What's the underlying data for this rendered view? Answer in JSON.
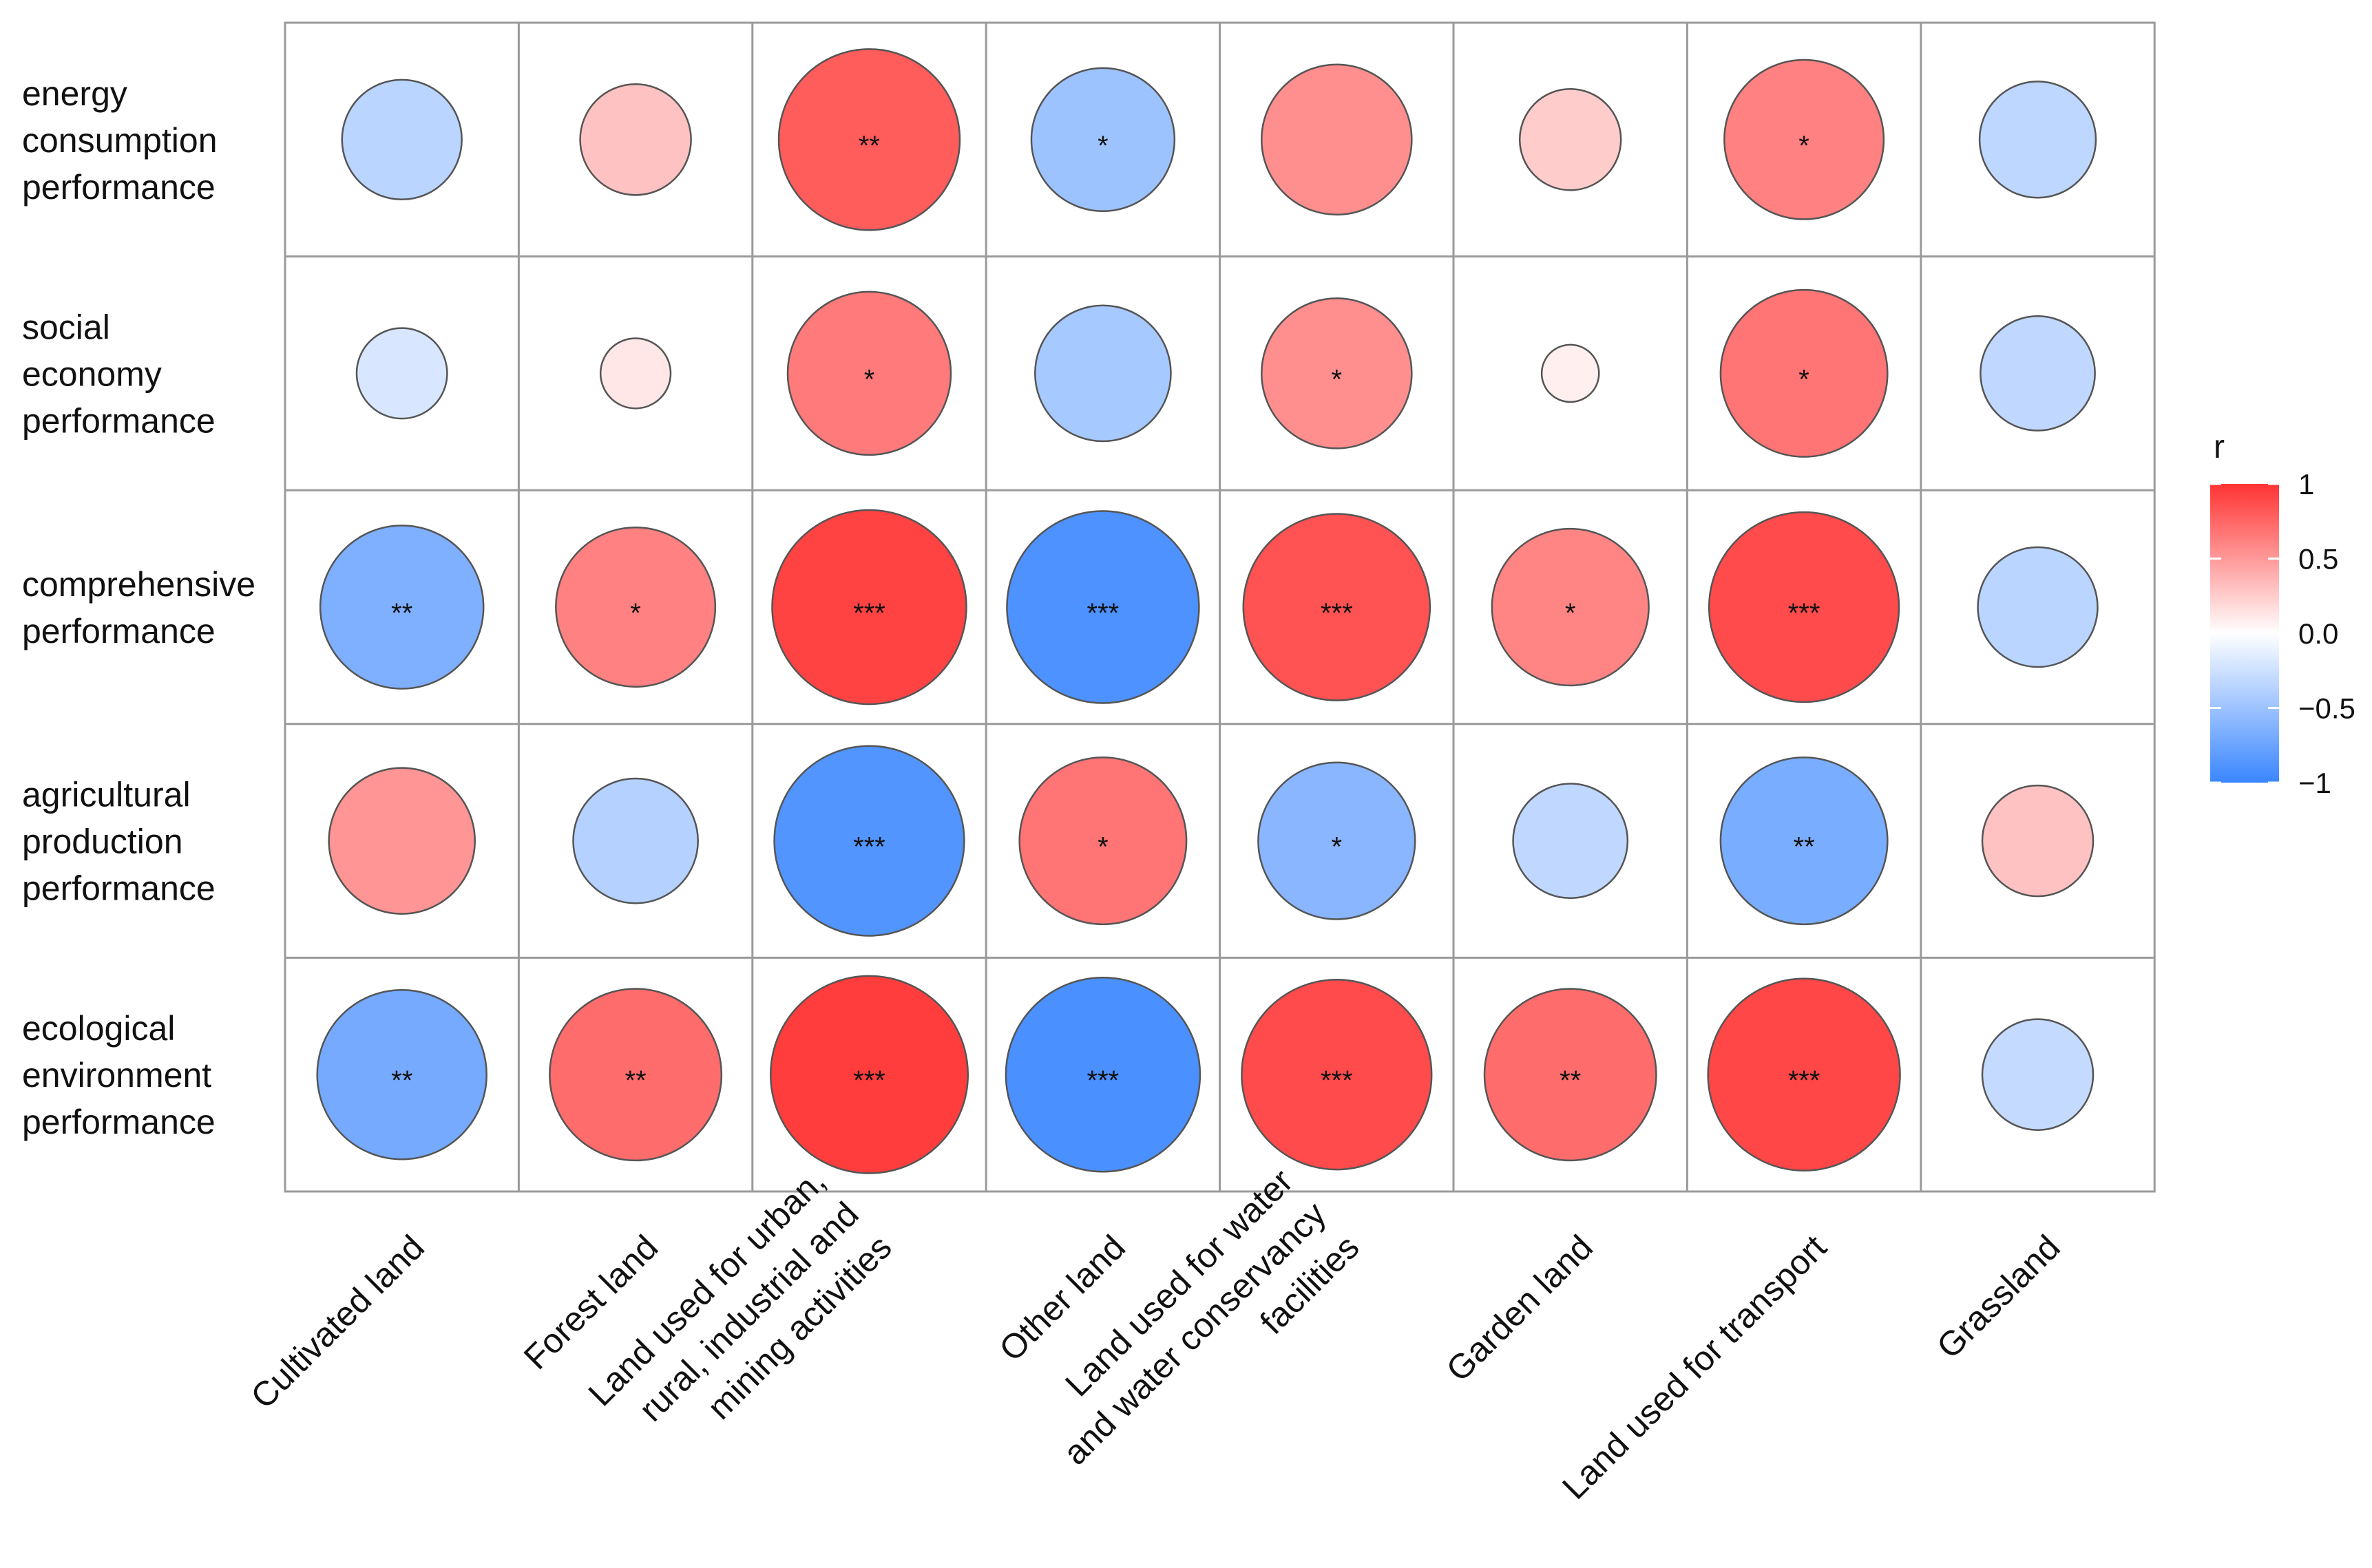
{
  "chart_data": {
    "type": "correlation-matrix",
    "rows": [
      "energy consumption performance",
      "social economy performance",
      "comprehensive performance",
      "agricultural production performance",
      "ecological environment performance"
    ],
    "row_lines": [
      [
        "energy",
        "consumption",
        "performance"
      ],
      [
        "social",
        "economy",
        "performance"
      ],
      [
        "comprehensive",
        "performance"
      ],
      [
        "agricultural",
        "production",
        "performance"
      ],
      [
        "ecological",
        "environment",
        "performance"
      ]
    ],
    "columns": [
      "Cultivated land",
      "Forest land",
      "Land used for urban, rural, industrial and mining activities",
      "Other land",
      "Land used for water and water conservancy facilities",
      "Garden land",
      "Land used for transport",
      "Grassland"
    ],
    "column_lines": [
      [
        "Cultivated land"
      ],
      [
        "Forest land"
      ],
      [
        "Land used for urban,",
        "rural, industrial and",
        "mining activities"
      ],
      [
        "Other land"
      ],
      [
        "Land used for water",
        "and water conservancy",
        "facilities"
      ],
      [
        "Garden land"
      ],
      [
        "Land used for transport"
      ],
      [
        "Grassland"
      ]
    ],
    "values": [
      [
        -0.35,
        0.3,
        0.8,
        -0.5,
        0.55,
        0.25,
        0.62,
        -0.33
      ],
      [
        -0.2,
        0.12,
        0.65,
        -0.45,
        0.55,
        0.08,
        0.68,
        -0.32
      ],
      [
        -0.65,
        0.62,
        0.92,
        -0.9,
        0.85,
        0.6,
        0.88,
        -0.35
      ],
      [
        0.52,
        -0.38,
        -0.88,
        0.68,
        -0.6,
        -0.32,
        -0.68,
        0.3
      ],
      [
        -0.7,
        0.72,
        0.95,
        -0.92,
        0.88,
        0.72,
        0.9,
        -0.3
      ]
    ],
    "significance": [
      [
        "",
        "",
        "**",
        "*",
        "",
        "",
        "*",
        ""
      ],
      [
        "",
        "",
        "*",
        "",
        "*",
        "",
        "*",
        ""
      ],
      [
        "**",
        "*",
        "***",
        "***",
        "***",
        "*",
        "***",
        ""
      ],
      [
        "",
        "",
        "***",
        "*",
        "*",
        "",
        "**",
        ""
      ],
      [
        "**",
        "**",
        "***",
        "***",
        "***",
        "**",
        "***",
        ""
      ]
    ],
    "legend": {
      "title": "r",
      "ticks": [
        {
          "value": 1,
          "label": "1"
        },
        {
          "value": 0.5,
          "label": "0.5"
        },
        {
          "value": 0,
          "label": "0.0"
        },
        {
          "value": -0.5,
          "label": "−0.5"
        },
        {
          "value": -1,
          "label": "−1"
        }
      ],
      "range": [
        -1,
        1
      ],
      "colors": {
        "low": "#3a86ff",
        "mid": "#ffffff",
        "high": "#ff3333"
      }
    }
  }
}
